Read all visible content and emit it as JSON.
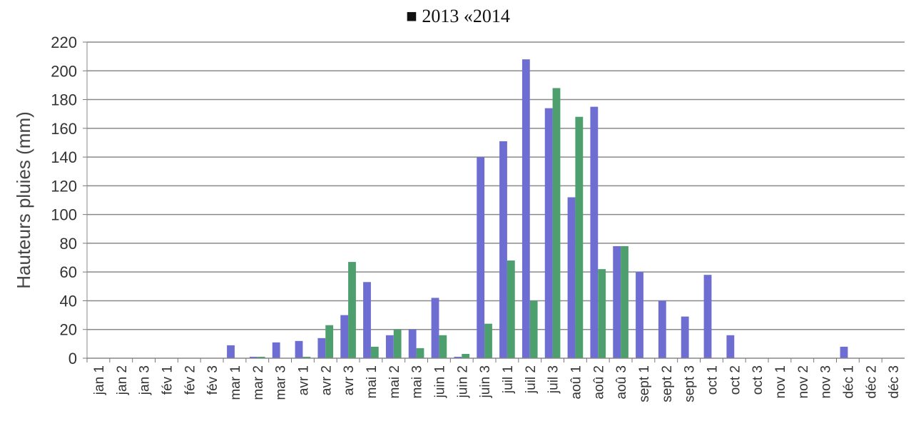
{
  "legend": {
    "marker": "■",
    "text": "2013 «2014"
  },
  "chart_data": {
    "type": "bar",
    "title": "",
    "xlabel": "",
    "ylabel": "Hauteurs pluies (mm)",
    "ylim": [
      0,
      220
    ],
    "yticks": [
      0,
      20,
      40,
      60,
      80,
      100,
      120,
      140,
      160,
      180,
      200,
      220
    ],
    "grid": true,
    "categories": [
      "jan 1",
      "jan 2",
      "jan 3",
      "fév 1",
      "fév 2",
      "fév 3",
      "mar 1",
      "mar 2",
      "mar 3",
      "avr 1",
      "avr 2",
      "avr 3",
      "mai 1",
      "mai 2",
      "mai 3",
      "juin 1",
      "juin 2",
      "juin 3",
      "juil 1",
      "juil 2",
      "juil 3",
      "aoû 1",
      "aoû 2",
      "aoû 3",
      "sept 1",
      "sept 2",
      "sept 3",
      "oct 1",
      "oct 2",
      "oct 3",
      "nov 1",
      "nov 2",
      "nov 3",
      "déc 1",
      "déc 2",
      "déc 3"
    ],
    "series": [
      {
        "name": "2013",
        "color": "#6e6ed2",
        "values": [
          0,
          0,
          0,
          0,
          0,
          0,
          9,
          1,
          11,
          12,
          14,
          30,
          53,
          16,
          20,
          42,
          1,
          140,
          151,
          208,
          174,
          112,
          175,
          78,
          60,
          40,
          29,
          58,
          16,
          0,
          0,
          0,
          0,
          8,
          0,
          0
        ]
      },
      {
        "name": "2014",
        "color": "#4e9f6e",
        "values": [
          0,
          0,
          0,
          0,
          0,
          0,
          0,
          1,
          0,
          1,
          23,
          67,
          8,
          20,
          7,
          16,
          3,
          24,
          68,
          40,
          188,
          168,
          62,
          78,
          0,
          0,
          0,
          0,
          0,
          0,
          0,
          0,
          0,
          0,
          0,
          0
        ]
      }
    ]
  }
}
